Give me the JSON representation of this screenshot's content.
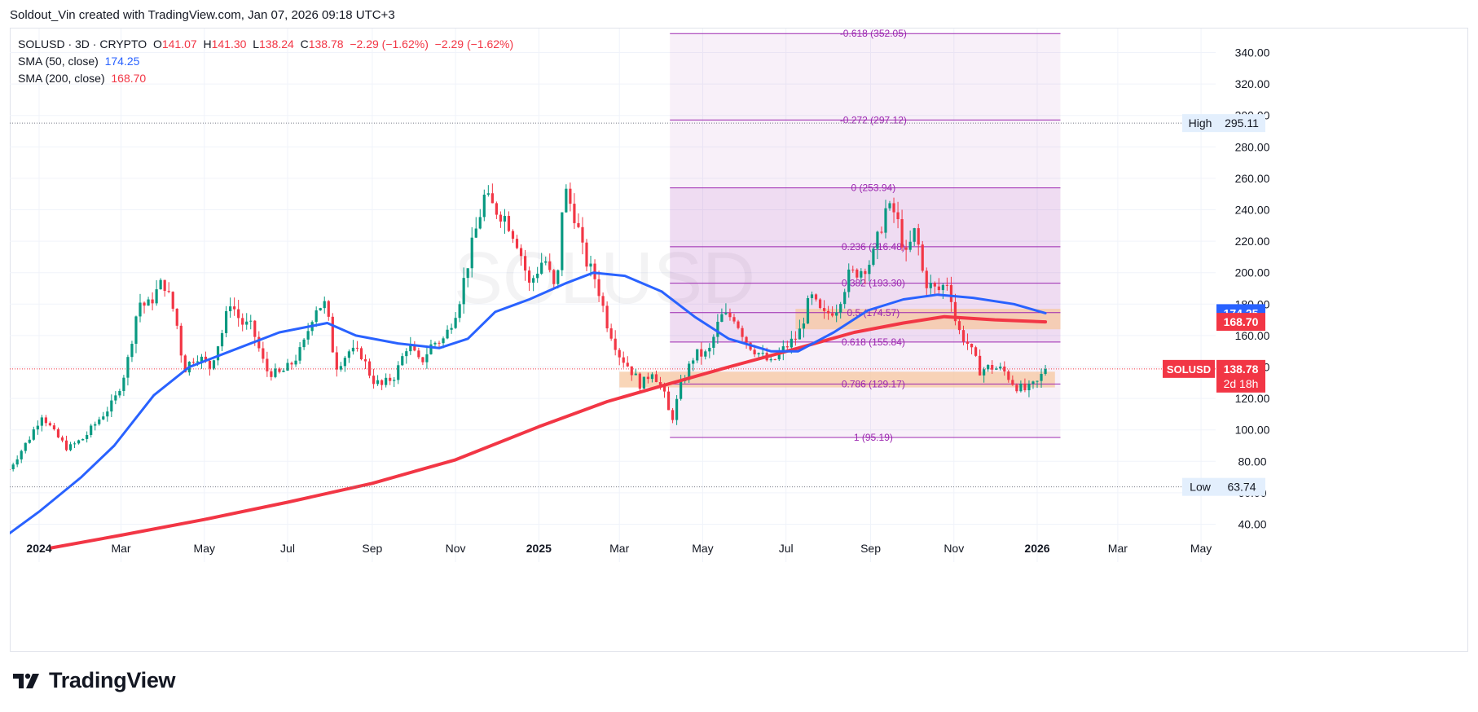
{
  "attribution": "Soldout_Vin created with TradingView.com, Jan 07, 2026 09:18 UTC+3",
  "legend": {
    "symbol": "SOLUSD · 3D · CRYPTO",
    "o_label": "O",
    "o": "141.07",
    "h_label": "H",
    "h": "141.30",
    "l_label": "L",
    "l": "138.24",
    "c_label": "C",
    "c": "138.78",
    "change": "−2.29 (−1.62%)",
    "change2": "−2.29 (−1.62%)",
    "sma50_label": "SMA (50, close)",
    "sma50_value": "174.25",
    "sma200_label": "SMA (200, close)",
    "sma200_value": "168.70"
  },
  "watermark": "SOLUSD",
  "brand": "TradingView",
  "colors": {
    "up": "#089981",
    "down": "#f23645",
    "sma50": "#2962ff",
    "sma200": "#f23645",
    "fib": "#9c27b0",
    "zone": "#f7c8a0",
    "fib_fill": "#f3e5f5"
  },
  "chart_data": {
    "type": "candlestick",
    "symbol": "SOLUSD",
    "timeframe": "3D",
    "x_range": [
      "2023-12-10",
      "2026-06-01"
    ],
    "y_range": [
      30,
      355
    ],
    "y_ticks": [
      "340.00",
      "320.00",
      "300.00",
      "280.00",
      "260.00",
      "240.00",
      "220.00",
      "200.00",
      "180.00",
      "160.00",
      "140.00",
      "120.00",
      "100.00",
      "80.00",
      "60.00",
      "40.00"
    ],
    "y_tick_values": [
      340,
      320,
      300,
      280,
      260,
      240,
      220,
      200,
      180,
      160,
      140,
      120,
      100,
      80,
      60,
      40
    ],
    "x_ticks": [
      {
        "label": "2024",
        "date": "2024-01-01",
        "bold": true
      },
      {
        "label": "Mar",
        "date": "2024-03-01"
      },
      {
        "label": "May",
        "date": "2024-05-01"
      },
      {
        "label": "Jul",
        "date": "2024-07-01"
      },
      {
        "label": "Sep",
        "date": "2024-09-01"
      },
      {
        "label": "Nov",
        "date": "2024-11-01"
      },
      {
        "label": "2025",
        "date": "2025-01-01",
        "bold": true
      },
      {
        "label": "Mar",
        "date": "2025-03-01"
      },
      {
        "label": "May",
        "date": "2025-05-01"
      },
      {
        "label": "Jul",
        "date": "2025-07-01"
      },
      {
        "label": "Sep",
        "date": "2025-09-01"
      },
      {
        "label": "Nov",
        "date": "2025-11-01"
      },
      {
        "label": "2026",
        "date": "2026-01-01",
        "bold": true
      },
      {
        "label": "Mar",
        "date": "2026-03-01"
      },
      {
        "label": "May",
        "date": "2026-05-01"
      }
    ],
    "close_series": [
      [
        "2023-12-10",
        75
      ],
      [
        "2023-12-25",
        95
      ],
      [
        "2024-01-03",
        110
      ],
      [
        "2024-01-12",
        98
      ],
      [
        "2024-01-22",
        88
      ],
      [
        "2024-02-03",
        95
      ],
      [
        "2024-02-15",
        108
      ],
      [
        "2024-02-25",
        118
      ],
      [
        "2024-03-05",
        140
      ],
      [
        "2024-03-14",
        182
      ],
      [
        "2024-03-20",
        178
      ],
      [
        "2024-04-01",
        195
      ],
      [
        "2024-04-10",
        172
      ],
      [
        "2024-04-16",
        138
      ],
      [
        "2024-04-25",
        148
      ],
      [
        "2024-05-05",
        140
      ],
      [
        "2024-05-14",
        162
      ],
      [
        "2024-05-20",
        182
      ],
      [
        "2024-05-28",
        168
      ],
      [
        "2024-06-05",
        165
      ],
      [
        "2024-06-15",
        138
      ],
      [
        "2024-06-24",
        135
      ],
      [
        "2024-07-02",
        140
      ],
      [
        "2024-07-12",
        152
      ],
      [
        "2024-07-21",
        178
      ],
      [
        "2024-07-29",
        180
      ],
      [
        "2024-08-05",
        140
      ],
      [
        "2024-08-15",
        150
      ],
      [
        "2024-08-24",
        148
      ],
      [
        "2024-09-01",
        132
      ],
      [
        "2024-09-08",
        128
      ],
      [
        "2024-09-18",
        135
      ],
      [
        "2024-09-27",
        155
      ],
      [
        "2024-10-06",
        142
      ],
      [
        "2024-10-15",
        155
      ],
      [
        "2024-10-24",
        158
      ],
      [
        "2024-11-03",
        180
      ],
      [
        "2024-11-11",
        210
      ],
      [
        "2024-11-22",
        248
      ],
      [
        "2024-11-28",
        242
      ],
      [
        "2024-12-08",
        235
      ],
      [
        "2024-12-17",
        218
      ],
      [
        "2024-12-25",
        192
      ],
      [
        "2025-01-05",
        210
      ],
      [
        "2025-01-14",
        185
      ],
      [
        "2025-01-19",
        255
      ],
      [
        "2025-01-28",
        235
      ],
      [
        "2025-02-03",
        210
      ],
      [
        "2025-02-12",
        195
      ],
      [
        "2025-02-20",
        168
      ],
      [
        "2025-03-01",
        148
      ],
      [
        "2025-03-08",
        140
      ],
      [
        "2025-03-17",
        128
      ],
      [
        "2025-03-25",
        138
      ],
      [
        "2025-04-02",
        125
      ],
      [
        "2025-04-08",
        105
      ],
      [
        "2025-04-15",
        128
      ],
      [
        "2025-04-25",
        148
      ],
      [
        "2025-05-05",
        148
      ],
      [
        "2025-05-14",
        172
      ],
      [
        "2025-05-24",
        172
      ],
      [
        "2025-06-03",
        155
      ],
      [
        "2025-06-12",
        148
      ],
      [
        "2025-06-20",
        142
      ],
      [
        "2025-06-30",
        152
      ],
      [
        "2025-07-10",
        160
      ],
      [
        "2025-07-19",
        185
      ],
      [
        "2025-07-28",
        172
      ],
      [
        "2025-08-07",
        178
      ],
      [
        "2025-08-16",
        198
      ],
      [
        "2025-08-25",
        202
      ],
      [
        "2025-09-02",
        208
      ],
      [
        "2025-09-12",
        240
      ],
      [
        "2025-09-19",
        238
      ],
      [
        "2025-09-27",
        210
      ],
      [
        "2025-10-04",
        228
      ],
      [
        "2025-10-10",
        195
      ],
      [
        "2025-10-20",
        188
      ],
      [
        "2025-10-28",
        195
      ],
      [
        "2025-11-03",
        165
      ],
      [
        "2025-11-11",
        155
      ],
      [
        "2025-11-20",
        138
      ],
      [
        "2025-11-28",
        140
      ],
      [
        "2025-12-07",
        138
      ],
      [
        "2025-12-16",
        128
      ],
      [
        "2025-12-24",
        125
      ],
      [
        "2026-01-01",
        130
      ],
      [
        "2026-01-07",
        138.78
      ]
    ],
    "sma50": [
      [
        "2023-12-10",
        34
      ],
      [
        "2024-01-01",
        48
      ],
      [
        "2024-02-01",
        70
      ],
      [
        "2024-02-25",
        90
      ],
      [
        "2024-03-25",
        122
      ],
      [
        "2024-04-20",
        140
      ],
      [
        "2024-05-20",
        150
      ],
      [
        "2024-06-25",
        162
      ],
      [
        "2024-07-30",
        168
      ],
      [
        "2024-08-20",
        160
      ],
      [
        "2024-09-20",
        155
      ],
      [
        "2024-10-20",
        152
      ],
      [
        "2024-11-10",
        158
      ],
      [
        "2024-11-30",
        175
      ],
      [
        "2024-12-25",
        183
      ],
      [
        "2025-01-20",
        193
      ],
      [
        "2025-02-10",
        200
      ],
      [
        "2025-03-05",
        198
      ],
      [
        "2025-04-01",
        188
      ],
      [
        "2025-04-25",
        172
      ],
      [
        "2025-05-20",
        158
      ],
      [
        "2025-06-20",
        150
      ],
      [
        "2025-07-10",
        150
      ],
      [
        "2025-08-05",
        162
      ],
      [
        "2025-08-30",
        176
      ],
      [
        "2025-09-25",
        183
      ],
      [
        "2025-10-20",
        186
      ],
      [
        "2025-11-15",
        184
      ],
      [
        "2025-12-15",
        180
      ],
      [
        "2026-01-07",
        174.25
      ]
    ],
    "sma200": [
      [
        "2024-01-10",
        25
      ],
      [
        "2024-03-01",
        33
      ],
      [
        "2024-05-01",
        43
      ],
      [
        "2024-07-01",
        54
      ],
      [
        "2024-09-01",
        66
      ],
      [
        "2024-11-01",
        81
      ],
      [
        "2025-01-01",
        102
      ],
      [
        "2025-02-20",
        118
      ],
      [
        "2025-04-01",
        128
      ],
      [
        "2025-05-20",
        140
      ],
      [
        "2025-07-10",
        152
      ],
      [
        "2025-08-20",
        162
      ],
      [
        "2025-09-25",
        168
      ],
      [
        "2025-10-25",
        172
      ],
      [
        "2025-12-01",
        170
      ],
      [
        "2026-01-07",
        168.7
      ]
    ],
    "fib_levels": [
      {
        "ratio": "-0.618",
        "price": 352.05,
        "text": "-0.618 (352.05)"
      },
      {
        "ratio": "-0.272",
        "price": 297.12,
        "text": "-0.272 (297.12)"
      },
      {
        "ratio": "0",
        "price": 253.94,
        "text": "0 (253.94)"
      },
      {
        "ratio": "0.236",
        "price": 216.48,
        "text": "0.236 (216.48)"
      },
      {
        "ratio": "0.382",
        "price": 193.3,
        "text": "0.382 (193.30)"
      },
      {
        "ratio": "0.5",
        "price": 174.57,
        "text": "0.5 (174.57)"
      },
      {
        "ratio": "0.618",
        "price": 155.84,
        "text": "0.618 (155.84)"
      },
      {
        "ratio": "0.786",
        "price": 129.17,
        "text": "0.786 (129.17)"
      },
      {
        "ratio": "1",
        "price": 95.19,
        "text": "1 (95.19)"
      }
    ],
    "fib_range": {
      "start": "2025-04-07",
      "end": "2026-01-18"
    },
    "zones": [
      {
        "name": "resistance",
        "from": "2025-07-08",
        "to": "2026-01-18",
        "low": 164,
        "high": 177
      },
      {
        "name": "support",
        "from": "2025-03-01",
        "to": "2026-01-14",
        "low": 127,
        "high": 137
      }
    ],
    "high_marker": {
      "label": "High",
      "value": 295.11
    },
    "low_marker": {
      "label": "Low",
      "value": 63.74
    },
    "last_price": {
      "symbol": "SOLUSD",
      "value": "138.78",
      "countdown": "2d 18h"
    },
    "sma50_tag": "174.25",
    "sma200_tag": "168.70"
  }
}
